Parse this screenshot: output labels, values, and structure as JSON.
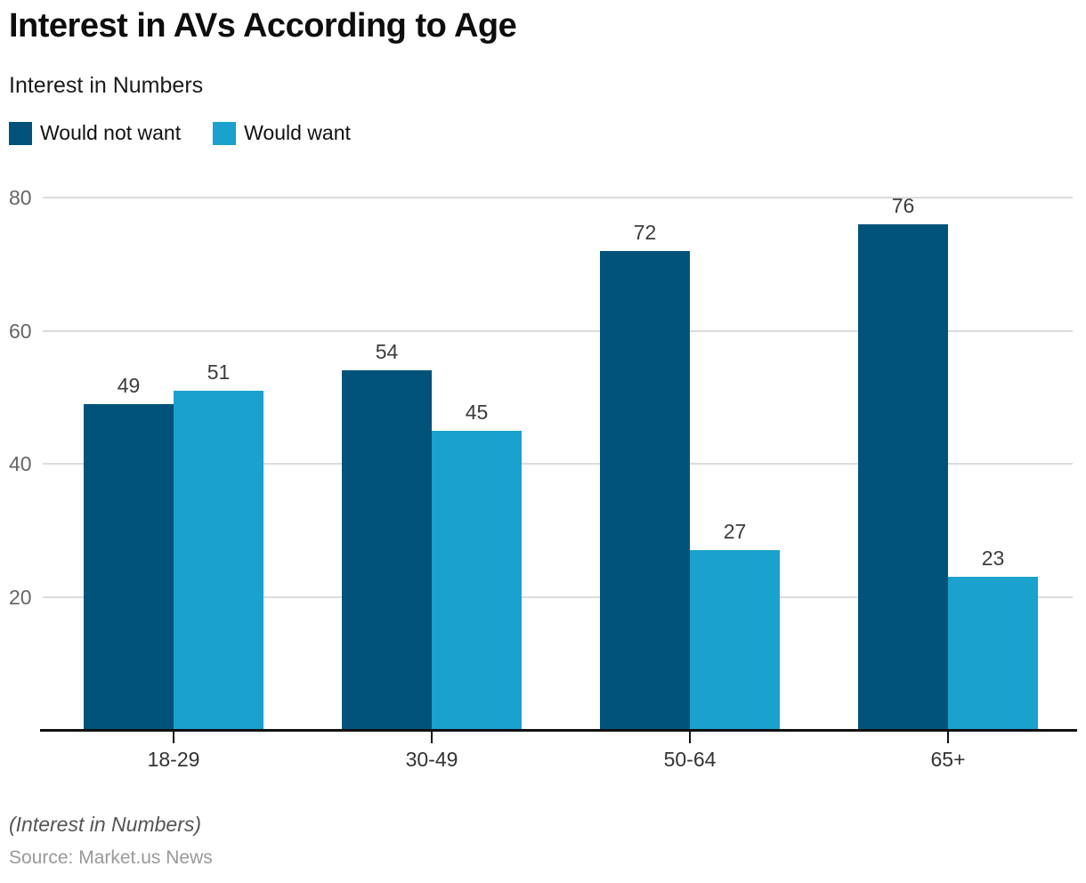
{
  "header": {
    "title": "Interest in AVs According to Age",
    "subtitle": "Interest in Numbers"
  },
  "legend": {
    "items": [
      {
        "label": "Would not want",
        "color": "#02537B"
      },
      {
        "label": "Would want",
        "color": "#1AA1CD"
      }
    ]
  },
  "chart_data": {
    "type": "bar",
    "title": "Interest in AVs According to Age",
    "subtitle": "Interest in Numbers",
    "categories": [
      "18-29",
      "30-49",
      "50-64",
      "65+"
    ],
    "series": [
      {
        "name": "Would not want",
        "color": "#02537B",
        "values": [
          49,
          54,
          72,
          76
        ]
      },
      {
        "name": "Would want",
        "color": "#1AA1CD",
        "values": [
          51,
          45,
          27,
          23
        ]
      }
    ],
    "xlabel": "",
    "ylabel": "",
    "yticks": [
      20,
      40,
      60,
      80
    ],
    "ylim": [
      0,
      85
    ],
    "grid": true,
    "legend_position": "top-left",
    "value_labels": true
  },
  "footer": {
    "note": "(Interest in Numbers)",
    "source": "Source: Market.us News"
  },
  "colors": {
    "gridline": "#DCDCDC",
    "axis": "#111111",
    "ytick_label": "#666666",
    "value_label": "#3C3C3C",
    "category_label": "#333333"
  }
}
